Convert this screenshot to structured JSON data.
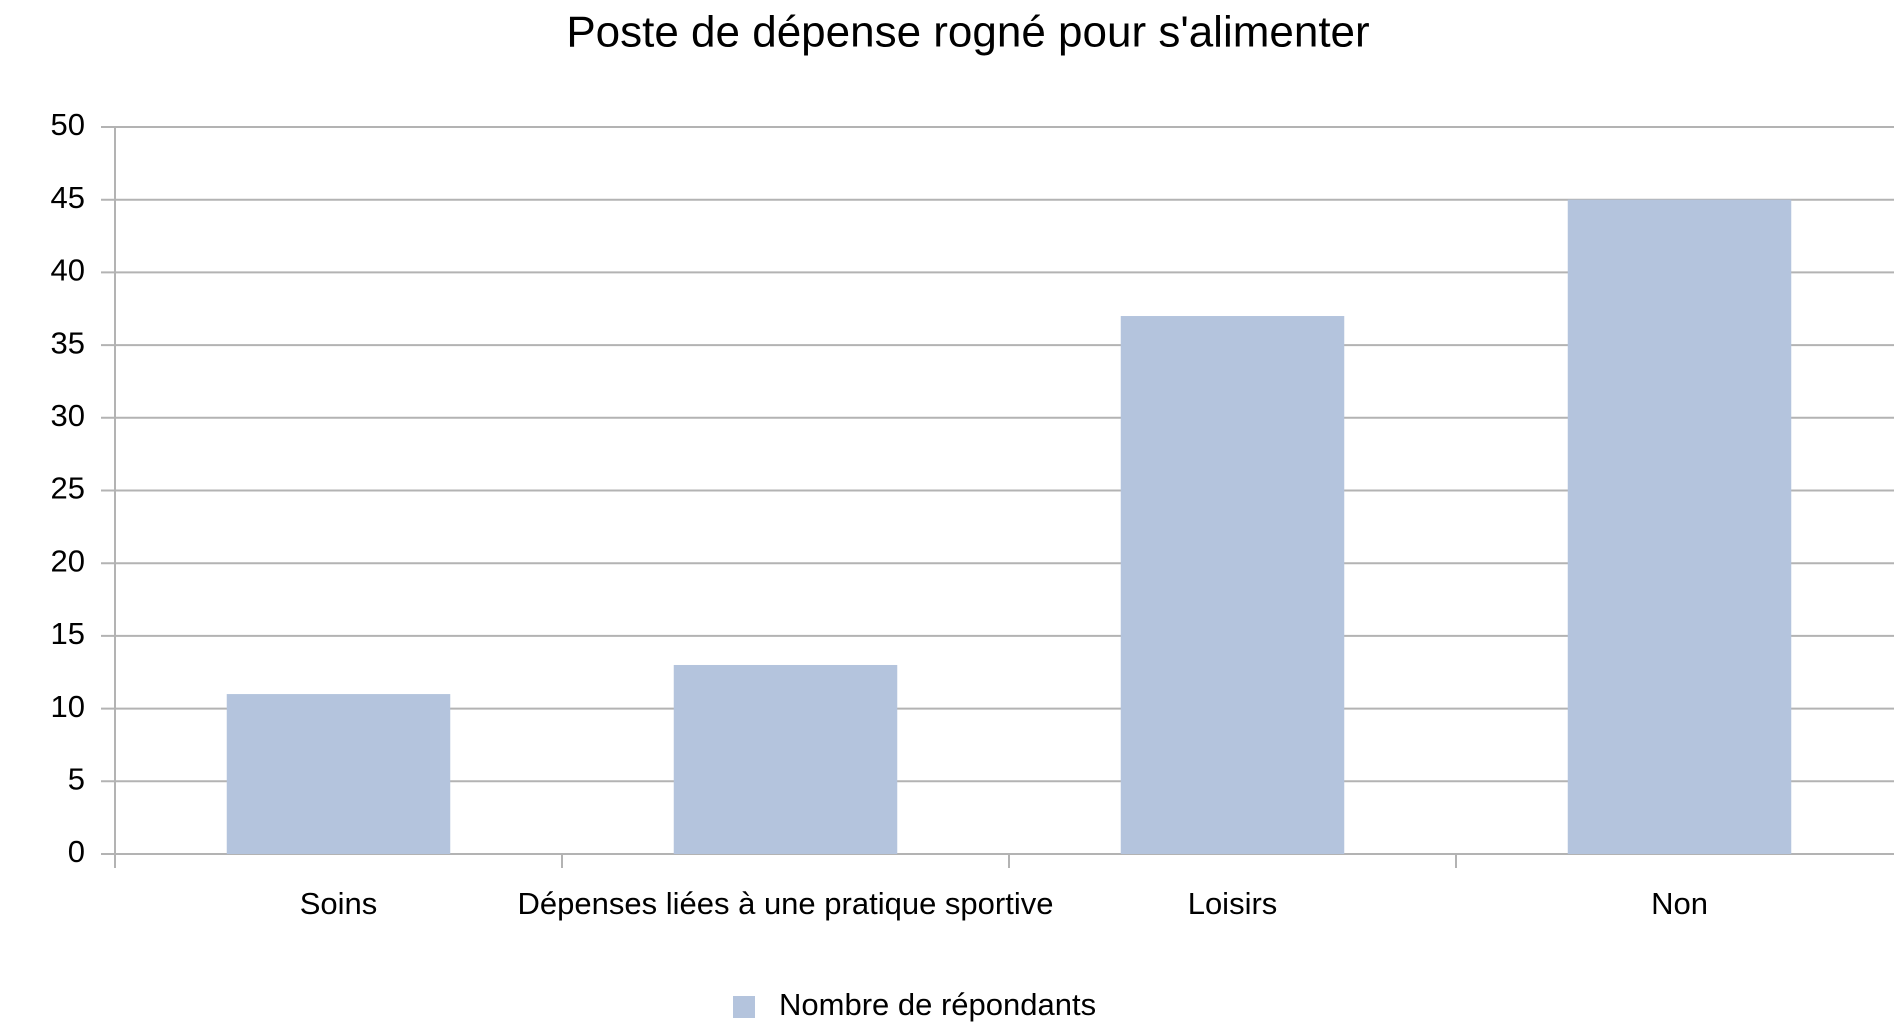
{
  "chart_data": {
    "type": "bar",
    "title": "Poste de dépense rogné pour s'alimenter",
    "categories": [
      "Soins",
      "Dépenses liées à une pratique sportive",
      "Loisirs",
      "Non"
    ],
    "series": [
      {
        "name": "Nombre de répondants",
        "color": "#b4c4dd",
        "values": [
          11,
          13,
          37,
          45
        ]
      }
    ],
    "ylim": [
      0,
      50
    ],
    "yticks": [
      0,
      5,
      10,
      15,
      20,
      25,
      30,
      35,
      40,
      45,
      50
    ],
    "grid": true,
    "legend": "bottom"
  }
}
